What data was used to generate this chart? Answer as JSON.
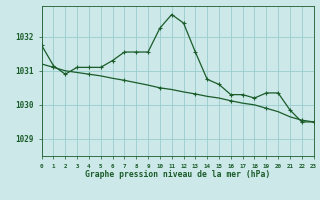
{
  "background_color": "#cce8e8",
  "plot_bg_color": "#cce8e8",
  "grid_color": "#99cccc",
  "line_color": "#1a5c2a",
  "title": "Graphe pression niveau de la mer (hPa)",
  "ylim": [
    1028.5,
    1032.9
  ],
  "yticks": [
    1029,
    1030,
    1031,
    1032
  ],
  "xlim": [
    0,
    23
  ],
  "xticks": [
    0,
    1,
    2,
    3,
    4,
    5,
    6,
    7,
    8,
    9,
    10,
    11,
    12,
    13,
    14,
    15,
    16,
    17,
    18,
    19,
    20,
    21,
    22,
    23
  ],
  "line1_x": [
    0,
    1,
    2,
    3,
    4,
    5,
    6,
    7,
    8,
    9,
    10,
    11,
    12,
    13,
    14,
    15,
    16,
    17,
    18,
    19,
    20,
    21,
    22,
    23
  ],
  "line1_y": [
    1031.75,
    1031.15,
    1030.9,
    1031.1,
    1031.1,
    1031.1,
    1031.3,
    1031.55,
    1031.55,
    1031.55,
    1032.25,
    1032.65,
    1032.4,
    1031.55,
    1030.75,
    1030.6,
    1030.3,
    1030.3,
    1030.2,
    1030.35,
    1030.35,
    1029.85,
    1029.5,
    1029.5
  ],
  "line2_x": [
    0,
    1,
    2,
    3,
    4,
    5,
    6,
    7,
    8,
    9,
    10,
    11,
    12,
    13,
    14,
    15,
    16,
    17,
    18,
    19,
    20,
    21,
    22,
    23
  ],
  "line2_y": [
    1031.2,
    1031.1,
    1031.0,
    1030.95,
    1030.9,
    1030.85,
    1030.78,
    1030.72,
    1030.65,
    1030.58,
    1030.5,
    1030.45,
    1030.38,
    1030.32,
    1030.25,
    1030.2,
    1030.12,
    1030.05,
    1030.0,
    1029.9,
    1029.8,
    1029.65,
    1029.55,
    1029.5
  ],
  "line2_markers_x": [
    1,
    4,
    7,
    10,
    13,
    16,
    19,
    22
  ],
  "line2_markers_y": [
    1031.1,
    1030.9,
    1030.72,
    1030.5,
    1030.32,
    1030.12,
    1029.9,
    1029.55
  ]
}
